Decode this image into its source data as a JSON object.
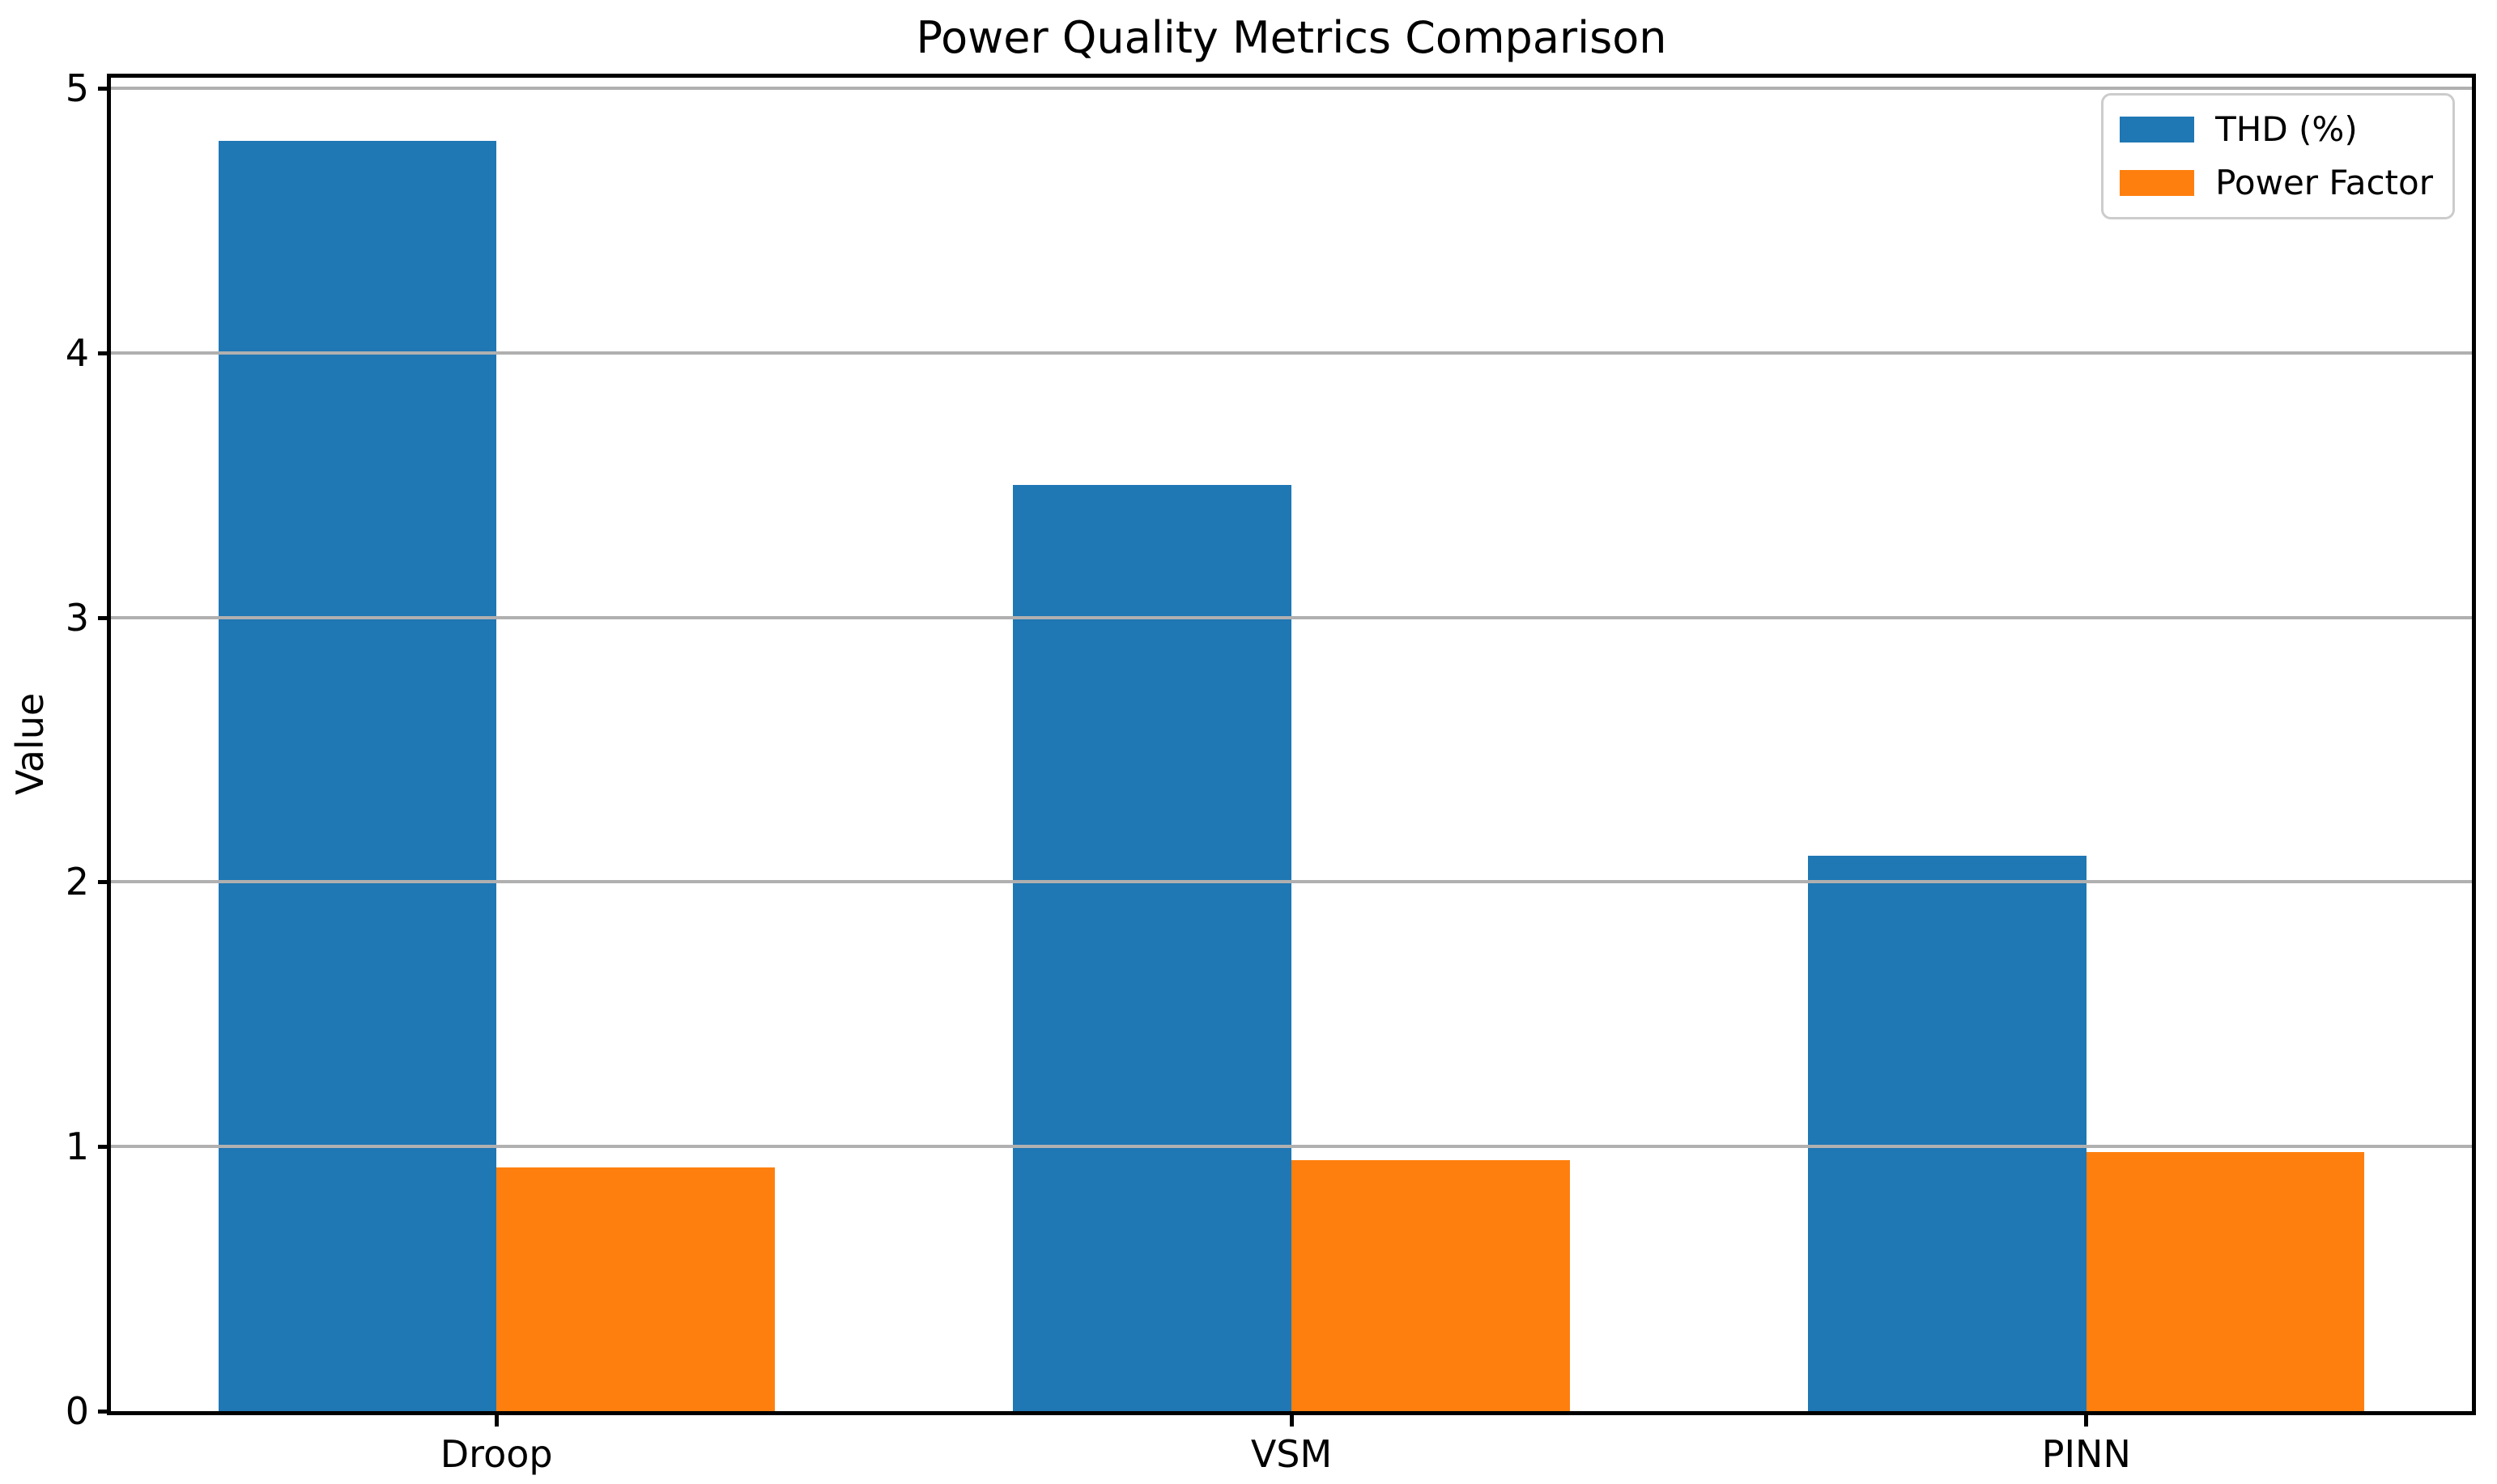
{
  "chart_data": {
    "type": "bar",
    "title": "Power Quality Metrics Comparison",
    "xlabel": "",
    "ylabel": "Value",
    "categories": [
      "Droop",
      "VSM",
      "PINN"
    ],
    "series": [
      {
        "name": "THD (%)",
        "color": "#1f77b4",
        "values": [
          4.8,
          3.5,
          2.1
        ]
      },
      {
        "name": "Power Factor",
        "color": "#ff7f0e",
        "values": [
          0.92,
          0.95,
          0.98
        ]
      }
    ],
    "ylim": [
      0,
      5.04
    ],
    "yticks": [
      0,
      1,
      2,
      3,
      4,
      5
    ],
    "bar_width_fraction": 0.35,
    "grid": "horizontal",
    "grid_over_bars": true,
    "grid_color": "#b0b0b0",
    "axis_color": "#000000",
    "background_color": "#ffffff",
    "legend_position": "upper right",
    "legend_entries": [
      "THD (%)",
      "Power Factor"
    ]
  }
}
